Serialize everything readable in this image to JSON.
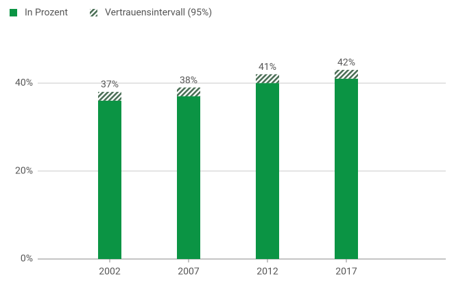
{
  "chart_data": {
    "type": "bar",
    "categories": [
      "2002",
      "2007",
      "2012",
      "2017"
    ],
    "series": [
      {
        "name": "In Prozent",
        "color": "#0b9444",
        "values": [
          37,
          38,
          41,
          42
        ],
        "value_labels": [
          "37%",
          "38%",
          "41%",
          "42%"
        ],
        "errors": [
          1,
          1,
          1,
          1
        ]
      }
    ],
    "interval_label": "Vertrauensintervall (95%)",
    "ylim": [
      0,
      50
    ],
    "yticks": [
      {
        "value": 0,
        "label": "0%"
      },
      {
        "value": 20,
        "label": "20%"
      },
      {
        "value": 40,
        "label": "40%"
      }
    ],
    "grid": true
  }
}
